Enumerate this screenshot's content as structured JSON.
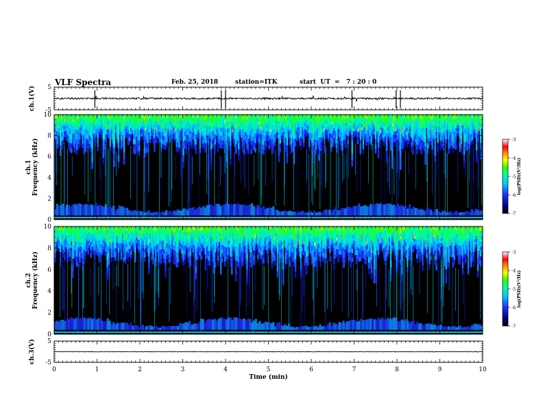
{
  "header": {
    "title": "VLF Spectra",
    "date": "Feb. 25, 2018",
    "station": "station=ITK",
    "start": "start  UT  =   7 : 20 : 0"
  },
  "chart_data": [
    {
      "type": "line",
      "panel": "ch1-waveform",
      "ylabel": "ch.1(V)",
      "ylim": [
        -5,
        5
      ],
      "yticks": [
        "5",
        "-5"
      ],
      "xlim": [
        0,
        10
      ],
      "baseline_level": 0
    },
    {
      "type": "heatmap",
      "panel": "ch1-spectrogram",
      "ylabel": "ch.1\nFrequency (kHz)",
      "ylabel_lines": [
        "ch.1",
        "Frequency (kHz)"
      ],
      "ylim": [
        0,
        10
      ],
      "yticks": [
        "0",
        "2",
        "4",
        "6",
        "8",
        "10"
      ],
      "xlim": [
        0,
        10
      ],
      "colorbar": {
        "label": "log(PSD)(V²/Hz)",
        "range": [
          -7,
          -3
        ],
        "ticks": [
          "-3",
          "-4",
          "-5",
          "-6",
          "-7"
        ]
      }
    },
    {
      "type": "heatmap",
      "panel": "ch2-spectrogram",
      "ylabel": "ch.2\nFrequency (kHz)",
      "ylabel_lines": [
        "ch.2",
        "Frequency (kHz)"
      ],
      "ylim": [
        0,
        10
      ],
      "yticks": [
        "0",
        "2",
        "4",
        "6",
        "8",
        "10"
      ],
      "xlim": [
        0,
        10
      ],
      "colorbar": {
        "label": "log(PSD)(V²/Hz)",
        "range": [
          -7,
          -3
        ],
        "ticks": [
          "-3",
          "-4",
          "-5",
          "-6",
          "-7"
        ]
      }
    },
    {
      "type": "line",
      "panel": "ch3-waveform",
      "ylabel": "ch.3(V)",
      "ylim": [
        -5,
        5
      ],
      "yticks": [
        "5",
        "-5"
      ],
      "xlim": [
        0,
        10
      ],
      "baseline_level": 0
    }
  ],
  "xaxis": {
    "label": "Time (min)",
    "ticks": [
      "0",
      "1",
      "2",
      "3",
      "4",
      "5",
      "6",
      "7",
      "8",
      "9",
      "10"
    ]
  }
}
